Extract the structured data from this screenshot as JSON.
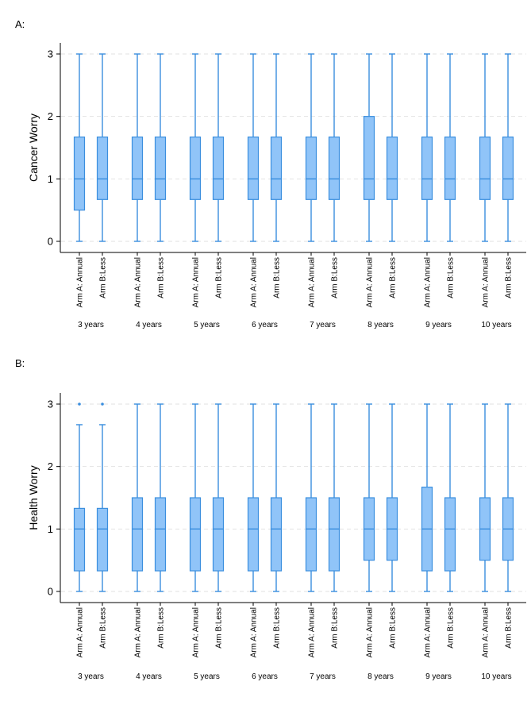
{
  "colors": {
    "box_fill": "#90c4f8",
    "box_stroke": "#3a8ede",
    "grid": "#e2e2e2",
    "axis": "#000000",
    "outlier": "#3a8ede"
  },
  "chart_data": [
    {
      "type": "box",
      "panel_label": "A:",
      "ylabel": "Cancer Worry",
      "ylim": [
        0,
        3
      ],
      "yticks": [
        "0",
        "1",
        "2",
        "3"
      ],
      "grid": true,
      "groups": [
        "3 years",
        "4 years",
        "5 years",
        "6 years",
        "7 years",
        "8 years",
        "9 years",
        "10 years"
      ],
      "arms": [
        "Arm A: Annual",
        "Arm B:Less"
      ],
      "boxes": [
        {
          "min": 0,
          "q1": 0.5,
          "median": 1,
          "q3": 1.67,
          "max": 3,
          "outliers": []
        },
        {
          "min": 0,
          "q1": 0.67,
          "median": 1,
          "q3": 1.67,
          "max": 3,
          "outliers": []
        },
        {
          "min": 0,
          "q1": 0.67,
          "median": 1,
          "q3": 1.67,
          "max": 3,
          "outliers": []
        },
        {
          "min": 0,
          "q1": 0.67,
          "median": 1,
          "q3": 1.67,
          "max": 3,
          "outliers": []
        },
        {
          "min": 0,
          "q1": 0.67,
          "median": 1,
          "q3": 1.67,
          "max": 3,
          "outliers": []
        },
        {
          "min": 0,
          "q1": 0.67,
          "median": 1,
          "q3": 1.67,
          "max": 3,
          "outliers": []
        },
        {
          "min": 0,
          "q1": 0.67,
          "median": 1,
          "q3": 1.67,
          "max": 3,
          "outliers": []
        },
        {
          "min": 0,
          "q1": 0.67,
          "median": 1,
          "q3": 1.67,
          "max": 3,
          "outliers": []
        },
        {
          "min": 0,
          "q1": 0.67,
          "median": 1,
          "q3": 1.67,
          "max": 3,
          "outliers": []
        },
        {
          "min": 0,
          "q1": 0.67,
          "median": 1,
          "q3": 1.67,
          "max": 3,
          "outliers": []
        },
        {
          "min": 0,
          "q1": 0.67,
          "median": 1,
          "q3": 2,
          "max": 3,
          "outliers": []
        },
        {
          "min": 0,
          "q1": 0.67,
          "median": 1,
          "q3": 1.67,
          "max": 3,
          "outliers": []
        },
        {
          "min": 0,
          "q1": 0.67,
          "median": 1,
          "q3": 1.67,
          "max": 3,
          "outliers": []
        },
        {
          "min": 0,
          "q1": 0.67,
          "median": 1,
          "q3": 1.67,
          "max": 3,
          "outliers": []
        },
        {
          "min": 0,
          "q1": 0.67,
          "median": 1,
          "q3": 1.67,
          "max": 3,
          "outliers": []
        },
        {
          "min": 0,
          "q1": 0.67,
          "median": 1,
          "q3": 1.67,
          "max": 3,
          "outliers": []
        }
      ]
    },
    {
      "type": "box",
      "panel_label": "B:",
      "ylabel": "Health Worry",
      "ylim": [
        0,
        3
      ],
      "yticks": [
        "0",
        "1",
        "2",
        "3"
      ],
      "grid": true,
      "groups": [
        "3 years",
        "4 years",
        "5 years",
        "6 years",
        "7 years",
        "8 years",
        "9 years",
        "10 years"
      ],
      "arms": [
        "Arm A: Annual",
        "Arm B:Less"
      ],
      "boxes": [
        {
          "min": 0,
          "q1": 0.33,
          "median": 1,
          "q3": 1.33,
          "max": 2.67,
          "outliers": [
            3
          ]
        },
        {
          "min": 0,
          "q1": 0.33,
          "median": 1,
          "q3": 1.33,
          "max": 2.67,
          "outliers": [
            3
          ]
        },
        {
          "min": 0,
          "q1": 0.33,
          "median": 1,
          "q3": 1.5,
          "max": 3,
          "outliers": []
        },
        {
          "min": 0,
          "q1": 0.33,
          "median": 1,
          "q3": 1.5,
          "max": 3,
          "outliers": []
        },
        {
          "min": 0,
          "q1": 0.33,
          "median": 1,
          "q3": 1.5,
          "max": 3,
          "outliers": []
        },
        {
          "min": 0,
          "q1": 0.33,
          "median": 1,
          "q3": 1.5,
          "max": 3,
          "outliers": []
        },
        {
          "min": 0,
          "q1": 0.33,
          "median": 1,
          "q3": 1.5,
          "max": 3,
          "outliers": []
        },
        {
          "min": 0,
          "q1": 0.33,
          "median": 1,
          "q3": 1.5,
          "max": 3,
          "outliers": []
        },
        {
          "min": 0,
          "q1": 0.33,
          "median": 1,
          "q3": 1.5,
          "max": 3,
          "outliers": []
        },
        {
          "min": 0,
          "q1": 0.33,
          "median": 1,
          "q3": 1.5,
          "max": 3,
          "outliers": []
        },
        {
          "min": 0,
          "q1": 0.5,
          "median": 1,
          "q3": 1.5,
          "max": 3,
          "outliers": []
        },
        {
          "min": 0,
          "q1": 0.5,
          "median": 1,
          "q3": 1.5,
          "max": 3,
          "outliers": []
        },
        {
          "min": 0,
          "q1": 0.33,
          "median": 1,
          "q3": 1.67,
          "max": 3,
          "outliers": []
        },
        {
          "min": 0,
          "q1": 0.33,
          "median": 1,
          "q3": 1.5,
          "max": 3,
          "outliers": []
        },
        {
          "min": 0,
          "q1": 0.5,
          "median": 1,
          "q3": 1.5,
          "max": 3,
          "outliers": []
        },
        {
          "min": 0,
          "q1": 0.5,
          "median": 1,
          "q3": 1.5,
          "max": 3,
          "outliers": []
        }
      ]
    }
  ]
}
